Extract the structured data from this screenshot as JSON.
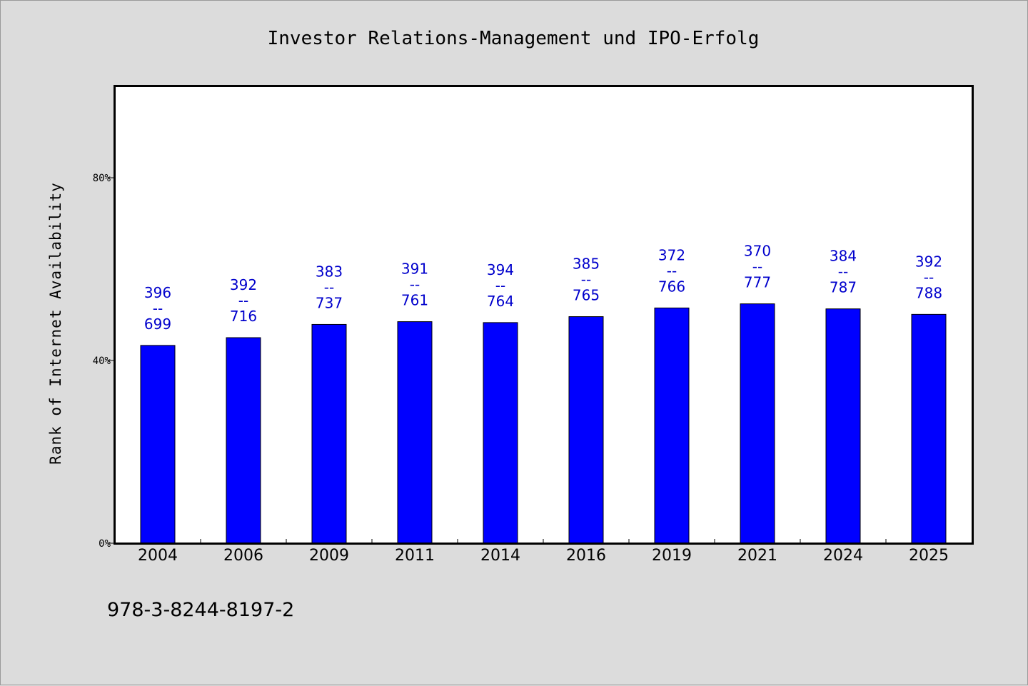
{
  "chart_data": {
    "type": "bar",
    "title": "Investor Relations-Management und IPO-Erfolg",
    "ylabel": "Rank of Internet Availability",
    "xlabel": "",
    "categories": [
      "2004",
      "2006",
      "2009",
      "2011",
      "2014",
      "2016",
      "2019",
      "2021",
      "2024",
      "2025"
    ],
    "values": [
      43.3,
      45.0,
      47.9,
      48.5,
      48.3,
      49.6,
      51.5,
      52.4,
      51.3,
      50.1
    ],
    "value_unit": "%",
    "ylim": [
      0,
      100
    ],
    "yticks": [
      0,
      40,
      80
    ],
    "ytick_labels": [
      "0%",
      "40%",
      "80%"
    ],
    "data_labels": [
      {
        "top": "396",
        "sep": "--",
        "bottom": "699"
      },
      {
        "top": "392",
        "sep": "--",
        "bottom": "716"
      },
      {
        "top": "383",
        "sep": "--",
        "bottom": "737"
      },
      {
        "top": "391",
        "sep": "--",
        "bottom": "761"
      },
      {
        "top": "394",
        "sep": "--",
        "bottom": "764"
      },
      {
        "top": "385",
        "sep": "--",
        "bottom": "765"
      },
      {
        "top": "372",
        "sep": "--",
        "bottom": "766"
      },
      {
        "top": "370",
        "sep": "--",
        "bottom": "777"
      },
      {
        "top": "384",
        "sep": "--",
        "bottom": "787"
      },
      {
        "top": "392",
        "sep": "--",
        "bottom": "788"
      }
    ],
    "bar_color": "#0000ff",
    "label_color": "#0000cc",
    "grid": false,
    "legend": "none"
  },
  "footnote": "978-3-8244-8197-2",
  "colors": {
    "background": "#dcdcdc",
    "plot_background": "#ffffff"
  }
}
